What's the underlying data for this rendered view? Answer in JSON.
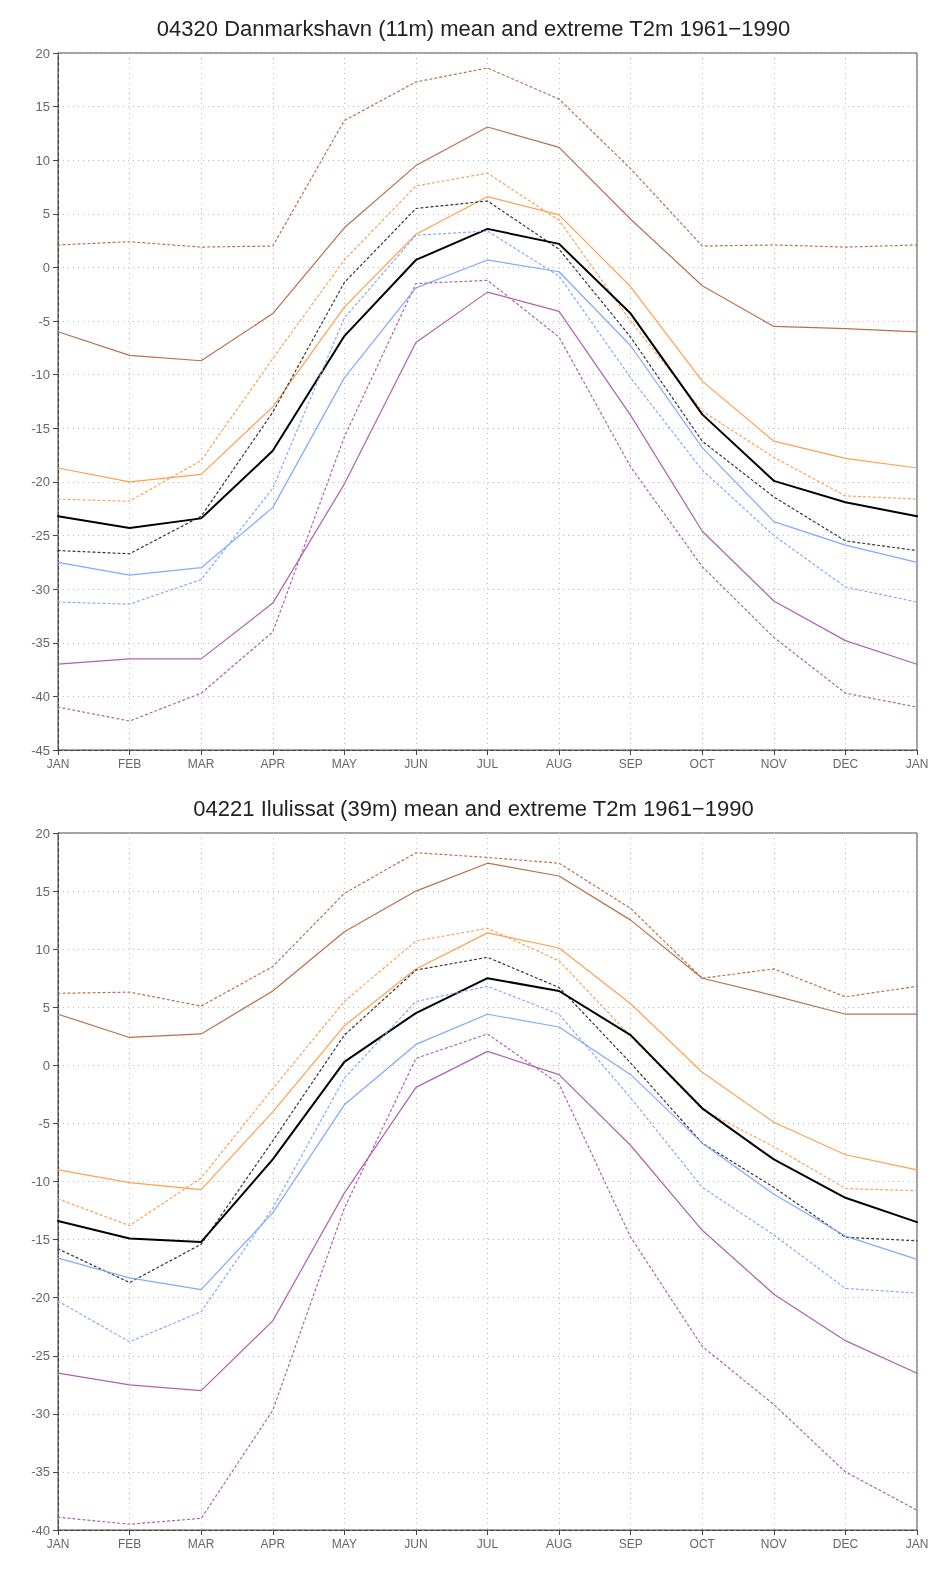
{
  "chart_data": [
    {
      "type": "line",
      "title": "04320 Danmarkshavn (11m) mean and extreme T2m 1961−1990",
      "categories": [
        "JAN",
        "FEB",
        "MAR",
        "APR",
        "MAY",
        "JUN",
        "JUL",
        "AUG",
        "SEP",
        "OCT",
        "NOV",
        "DEC",
        "JAN"
      ],
      "ylim": [
        -45,
        20
      ],
      "yticks": [
        -45,
        -40,
        -35,
        -30,
        -25,
        -20,
        -15,
        -10,
        -5,
        0,
        5,
        10,
        15,
        20
      ],
      "grid": true,
      "marker": "none",
      "line_style": "solid",
      "series": [
        {
          "color": "#b8704a",
          "line_style": "dotted",
          "values": [
            2.1,
            2.4,
            1.9,
            2.0,
            13.7,
            17.3,
            18.6,
            15.7,
            9.2,
            2.0,
            2.1,
            1.9,
            2.1
          ]
        },
        {
          "color": "#b8704a",
          "values": [
            -6.0,
            -8.2,
            -8.7,
            -4.3,
            3.7,
            9.5,
            13.1,
            11.2,
            4.5,
            -1.7,
            -5.5,
            -5.7,
            -6.0
          ]
        },
        {
          "color": "#ffa050",
          "line_style": "dotted",
          "values": [
            -21.6,
            -21.8,
            -18.0,
            -8.5,
            0.7,
            7.6,
            8.8,
            4.4,
            -5.0,
            -13.4,
            -17.7,
            -21.3,
            -21.6
          ]
        },
        {
          "color": "#ffa050",
          "values": [
            -18.7,
            -20.0,
            -19.3,
            -13.0,
            -3.7,
            3.1,
            6.6,
            4.9,
            -1.8,
            -10.6,
            -16.2,
            -17.8,
            -18.7
          ]
        },
        {
          "color": "#333333",
          "line_style": "dotted",
          "values": [
            -26.4,
            -26.7,
            -23.2,
            -13.5,
            -1.4,
            5.5,
            6.2,
            1.7,
            -6.5,
            -16.2,
            -21.4,
            -25.5,
            -26.4
          ]
        },
        {
          "color": "#000000",
          "values": [
            -23.2,
            -24.3,
            -23.4,
            -17.1,
            -6.4,
            0.7,
            3.6,
            2.2,
            -4.3,
            -13.7,
            -19.9,
            -21.9,
            -23.2
          ]
        },
        {
          "color": "#80aaff",
          "line_style": "dotted",
          "values": [
            -31.2,
            -31.4,
            -29.1,
            -20.6,
            -4.7,
            3.0,
            3.4,
            -0.8,
            -10.3,
            -18.9,
            -25.0,
            -29.8,
            -31.2
          ]
        },
        {
          "color": "#80aaff",
          "values": [
            -27.5,
            -28.7,
            -28.0,
            -22.4,
            -10.3,
            -1.9,
            0.7,
            -0.4,
            -7.3,
            -16.8,
            -23.7,
            -25.9,
            -27.5
          ]
        },
        {
          "color": "#b060b0",
          "line_style": "dotted",
          "values": [
            -41.0,
            -42.3,
            -39.7,
            -34.0,
            -15.8,
            -1.5,
            -1.2,
            -6.5,
            -18.6,
            -27.9,
            -34.5,
            -39.7,
            -41.0
          ]
        },
        {
          "color": "#b060b0",
          "values": [
            -37.0,
            -36.5,
            -36.5,
            -31.3,
            -20.2,
            -7.0,
            -2.3,
            -4.1,
            -13.8,
            -24.6,
            -31.1,
            -34.8,
            -37.0
          ]
        }
      ]
    },
    {
      "type": "line",
      "title": "04221 Ilulissat (39m) mean and extreme T2m 1961−1990",
      "categories": [
        "JAN",
        "FEB",
        "MAR",
        "APR",
        "MAY",
        "JUN",
        "JUL",
        "AUG",
        "SEP",
        "OCT",
        "NOV",
        "DEC",
        "JAN"
      ],
      "ylim": [
        -40,
        20
      ],
      "yticks": [
        -40,
        -35,
        -30,
        -25,
        -20,
        -15,
        -10,
        -5,
        0,
        5,
        10,
        15,
        20
      ],
      "grid": true,
      "marker": "none",
      "line_style": "solid",
      "series": [
        {
          "color": "#b8704a",
          "line_style": "dotted",
          "values": [
            6.2,
            6.3,
            5.1,
            8.5,
            14.8,
            18.3,
            17.9,
            17.4,
            13.5,
            7.5,
            8.3,
            5.9,
            6.8
          ]
        },
        {
          "color": "#b8704a",
          "values": [
            4.4,
            2.4,
            2.7,
            6.4,
            11.5,
            15.0,
            17.4,
            16.3,
            12.5,
            7.5,
            6.0,
            4.4,
            4.4
          ]
        },
        {
          "color": "#ffa050",
          "line_style": "dotted",
          "values": [
            -11.5,
            -13.8,
            -9.7,
            -2.0,
            5.5,
            10.7,
            11.8,
            9.0,
            2.5,
            -3.8,
            -7.0,
            -10.6,
            -10.8
          ]
        },
        {
          "color": "#ffa050",
          "values": [
            -9.0,
            -10.1,
            -10.7,
            -4.0,
            3.4,
            8.3,
            11.4,
            10.1,
            5.3,
            -0.6,
            -4.9,
            -7.7,
            -9.0
          ]
        },
        {
          "color": "#333333",
          "line_style": "dotted",
          "values": [
            -15.8,
            -18.7,
            -15.4,
            -6.5,
            2.6,
            8.2,
            9.3,
            6.7,
            0.2,
            -6.7,
            -10.5,
            -14.8,
            -15.1
          ]
        },
        {
          "color": "#000000",
          "values": [
            -13.4,
            -14.9,
            -15.2,
            -8.1,
            0.3,
            4.5,
            7.5,
            6.4,
            2.6,
            -3.7,
            -8.1,
            -11.4,
            -13.5
          ]
        },
        {
          "color": "#80aaff",
          "line_style": "dotted",
          "values": [
            -20.3,
            -23.8,
            -21.2,
            -12.3,
            -1.1,
            5.5,
            6.8,
            4.4,
            -2.8,
            -10.5,
            -14.6,
            -19.2,
            -19.6
          ]
        },
        {
          "color": "#80aaff",
          "values": [
            -16.6,
            -18.3,
            -19.3,
            -12.7,
            -3.4,
            1.8,
            4.4,
            3.3,
            -0.8,
            -6.7,
            -11.1,
            -14.7,
            -16.7
          ]
        },
        {
          "color": "#b060b0",
          "line_style": "dotted",
          "values": [
            -38.9,
            -39.5,
            -39.0,
            -29.7,
            -12.3,
            0.6,
            2.7,
            -1.6,
            -14.8,
            -24.2,
            -29.2,
            -35.0,
            -38.3
          ]
        },
        {
          "color": "#b060b0",
          "values": [
            -26.5,
            -27.5,
            -28.0,
            -22.0,
            -11.0,
            -1.9,
            1.2,
            -0.8,
            -6.9,
            -14.2,
            -19.7,
            -23.7,
            -26.5
          ]
        }
      ]
    }
  ]
}
